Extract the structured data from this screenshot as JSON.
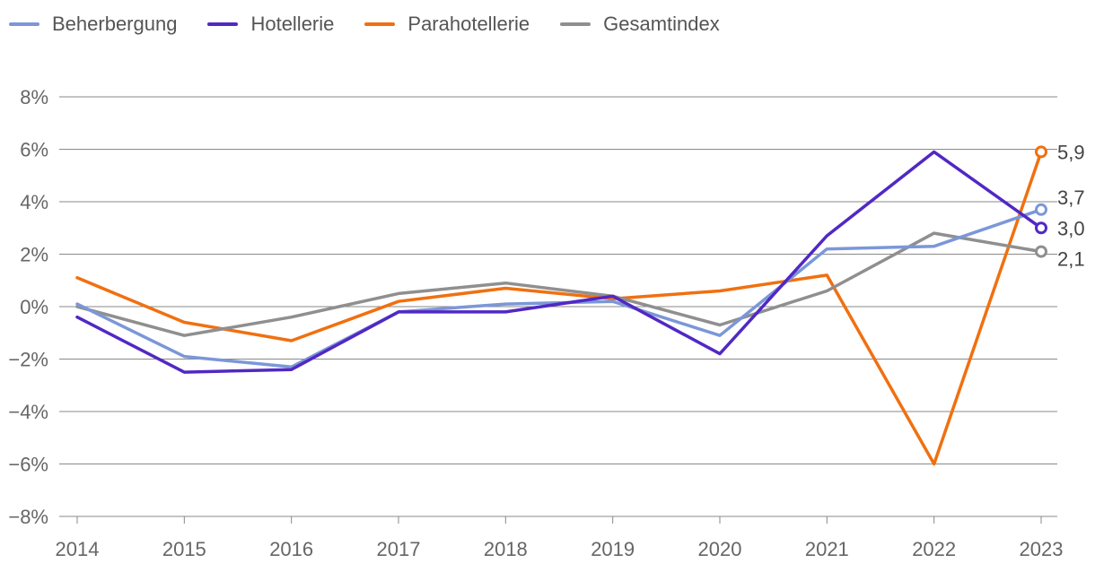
{
  "chart_data": {
    "type": "line",
    "x": [
      "2014",
      "2015",
      "2016",
      "2017",
      "2018",
      "2019",
      "2020",
      "2021",
      "2022",
      "2023"
    ],
    "ylim": [
      -8,
      8
    ],
    "yticks": [
      -8,
      -6,
      -4,
      -2,
      0,
      2,
      4,
      6,
      8
    ],
    "ytick_labels": [
      "−8%",
      "−6%",
      "−4%",
      "−2%",
      "0%",
      "2%",
      "4%",
      "6%",
      "8%"
    ],
    "grid": true,
    "legend_position": "top-left",
    "series": [
      {
        "name": "Beherbergung",
        "color": "#7b97d8",
        "values": [
          0.1,
          -1.9,
          -2.3,
          -0.2,
          0.1,
          0.2,
          -1.1,
          2.2,
          2.3,
          3.7
        ],
        "end_label": "3,7"
      },
      {
        "name": "Hotellerie",
        "color": "#5128c4",
        "values": [
          -0.4,
          -2.5,
          -2.4,
          -0.2,
          -0.2,
          0.4,
          -1.8,
          2.7,
          5.9,
          3.0
        ],
        "end_label": "3,0"
      },
      {
        "name": "Parahotellerie",
        "color": "#f07010",
        "values": [
          1.1,
          -0.6,
          -1.3,
          0.2,
          0.7,
          0.3,
          0.6,
          1.2,
          -6.0,
          5.9
        ],
        "end_label": "5,9"
      },
      {
        "name": "Gesamtindex",
        "color": "#8f8f8f",
        "values": [
          0.0,
          -1.1,
          -0.4,
          0.5,
          0.9,
          0.4,
          -0.7,
          0.6,
          2.8,
          2.1
        ],
        "end_label": "2,1"
      }
    ]
  }
}
